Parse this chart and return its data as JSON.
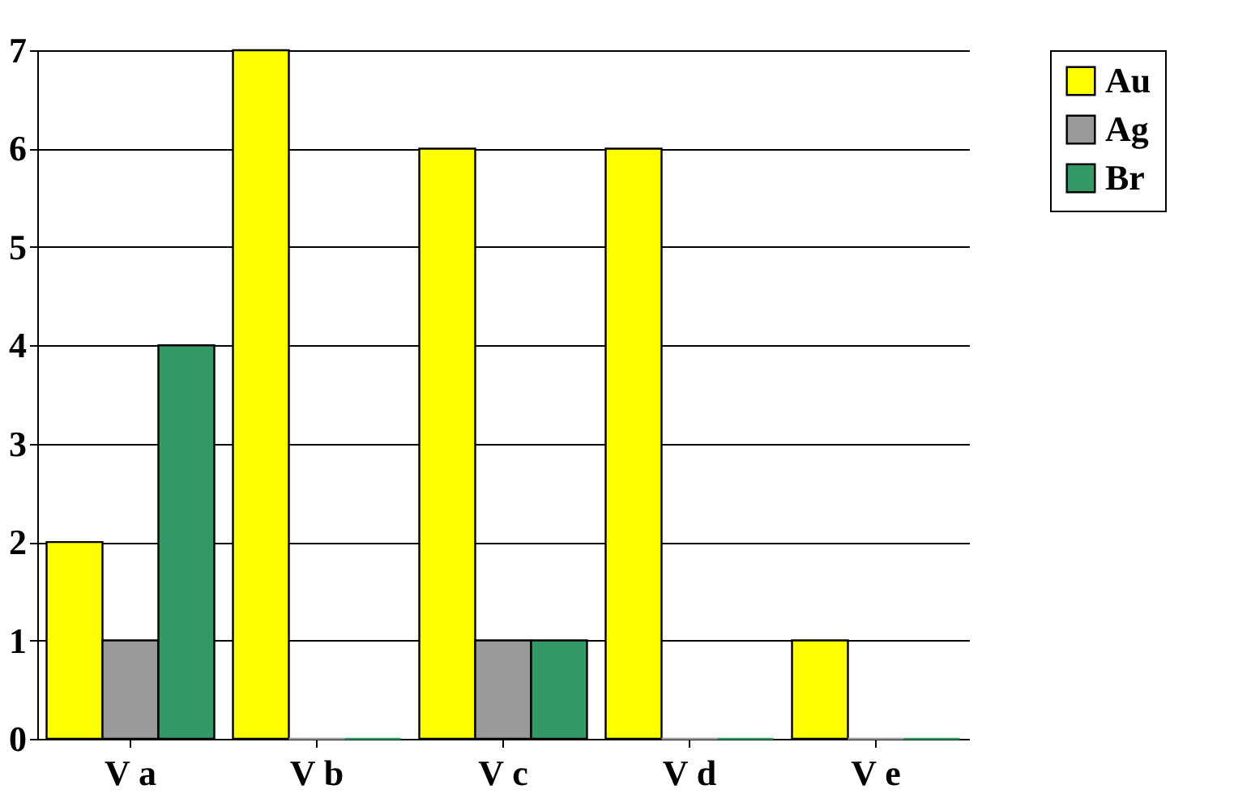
{
  "chart_data": {
    "type": "bar",
    "categories": [
      "V a",
      "V b",
      "V c",
      "V d",
      "V e"
    ],
    "series": [
      {
        "name": "Au",
        "color": "#ffff00",
        "values": [
          2,
          7,
          6,
          6,
          1
        ]
      },
      {
        "name": "Ag",
        "color": "#999999",
        "values": [
          1,
          0,
          1,
          0,
          0
        ]
      },
      {
        "name": "Br",
        "color": "#339966",
        "values": [
          4,
          0,
          1,
          0,
          0
        ]
      }
    ],
    "ylim": [
      0,
      7
    ],
    "yticks": [
      0,
      1,
      2,
      3,
      4,
      5,
      6,
      7
    ],
    "grid": "y",
    "legend": "right"
  }
}
